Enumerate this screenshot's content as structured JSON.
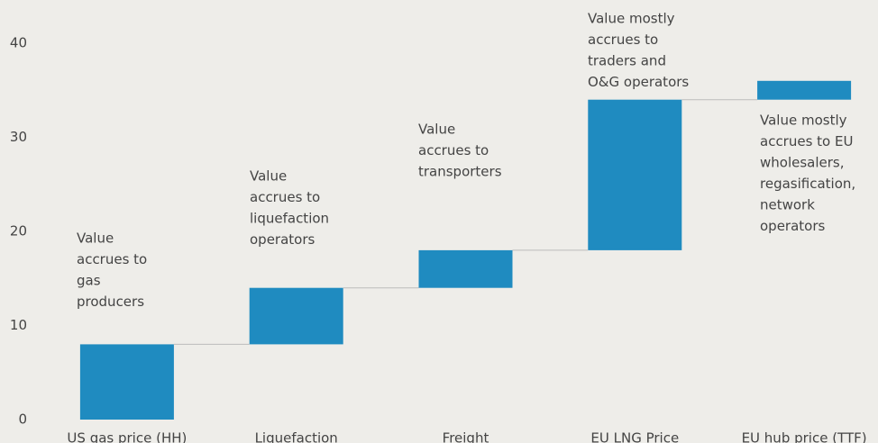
{
  "chart_data": {
    "type": "waterfall",
    "categories": [
      "US gas price (HH)",
      "Liquefaction",
      "Freight",
      "EU LNG Price",
      "EU hub price (TTF)"
    ],
    "values": [
      8,
      6,
      4,
      16,
      2
    ],
    "color": "#1f8bc0",
    "ylim": [
      0,
      40
    ],
    "yticks": [
      0,
      10,
      20,
      30,
      40
    ],
    "grid": false,
    "annotations": [
      [
        "Value",
        "accrues to",
        "gas",
        "producers"
      ],
      [
        "Value",
        "accrues to",
        "liquefaction",
        "operators"
      ],
      [
        "Value",
        "accrues to",
        "transporters"
      ],
      [
        "Value mostly",
        "accrues to",
        "traders and",
        "O&G operators"
      ],
      [
        "Value mostly",
        "accrues to EU",
        "wholesalers,",
        "regasification,",
        "network",
        "operators"
      ]
    ]
  }
}
